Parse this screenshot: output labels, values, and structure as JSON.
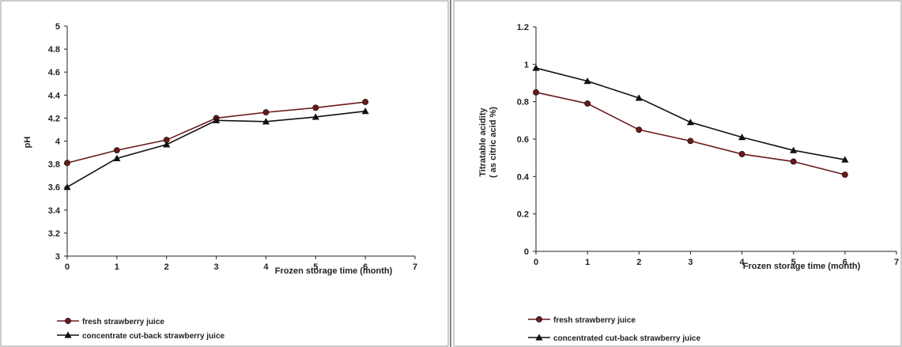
{
  "chart_data": [
    {
      "type": "line",
      "xlabel": "Frozen storage time (month)",
      "ylabel": "pH",
      "xlim": [
        0,
        7
      ],
      "ylim": [
        3,
        5
      ],
      "xticks": [
        "0",
        "1",
        "2",
        "3",
        "4",
        "5",
        "6",
        "7"
      ],
      "yticks": [
        "3",
        "3.2",
        "3.4",
        "3.6",
        "3.8",
        "4",
        "4.2",
        "4.4",
        "4.6",
        "4.8",
        "5"
      ],
      "legend_position": "bottom-left",
      "grid": false,
      "series": [
        {
          "name": "fresh strawberry juice",
          "marker": "circle",
          "color": "#6b1a1a",
          "x": [
            0,
            1,
            2,
            3,
            4,
            5,
            6
          ],
          "values": [
            3.81,
            3.92,
            4.01,
            4.2,
            4.25,
            4.29,
            4.34
          ]
        },
        {
          "name": "concentrate cut-back strawberry juice",
          "marker": "triangle",
          "color": "#111111",
          "x": [
            0,
            1,
            2,
            3,
            4,
            5,
            6
          ],
          "values": [
            3.6,
            3.85,
            3.97,
            4.18,
            4.17,
            4.21,
            4.26
          ]
        }
      ]
    },
    {
      "type": "line",
      "xlabel": "Frozen storage time (month)",
      "ylabel": [
        "Titratable acidity",
        "( as citric acid %)"
      ],
      "xlim": [
        0,
        7
      ],
      "ylim": [
        0,
        1.2
      ],
      "xticks": [
        "0",
        "1",
        "2",
        "3",
        "4",
        "5",
        "6",
        "7"
      ],
      "yticks": [
        "0",
        "0.2",
        "0.4",
        "0.6",
        "0.8",
        "1",
        "1.2"
      ],
      "legend_position": "bottom-left",
      "grid": false,
      "series": [
        {
          "name": "fresh strawberry juice",
          "marker": "circle",
          "color": "#6b1a1a",
          "x": [
            0,
            1,
            2,
            3,
            4,
            5,
            6
          ],
          "values": [
            0.85,
            0.79,
            0.65,
            0.59,
            0.52,
            0.48,
            0.41
          ]
        },
        {
          "name": "concentrated cut-back strawberry juice",
          "marker": "triangle",
          "color": "#111111",
          "x": [
            0,
            1,
            2,
            3,
            4,
            5,
            6
          ],
          "values": [
            0.98,
            0.91,
            0.82,
            0.69,
            0.61,
            0.54,
            0.49
          ]
        }
      ]
    }
  ]
}
